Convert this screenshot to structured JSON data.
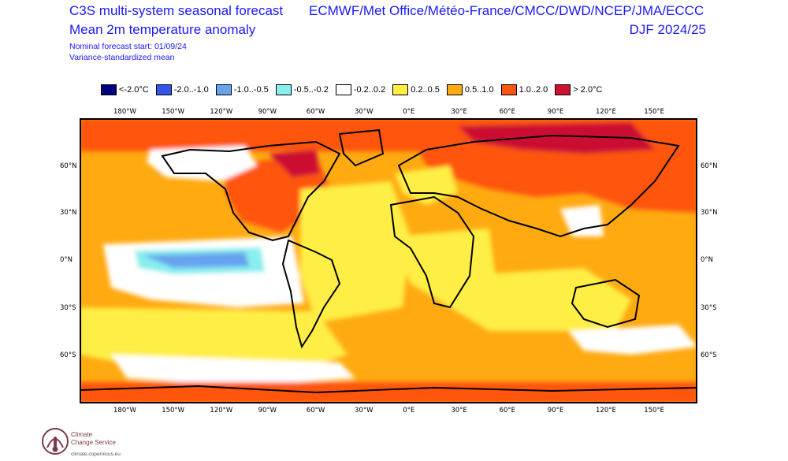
{
  "header": {
    "title_line1": "C3S multi-system seasonal forecast",
    "title_line2": "Mean 2m temperature anomaly",
    "note_line1": "Nominal forecast start: 01/09/24",
    "note_line2": "Variance-standardized mean",
    "models": "ECMWF/Met Office/Météo-France/CMCC/DWD/NCEP/JMA/ECCC",
    "season": "DJF 2024/25"
  },
  "legend": [
    {
      "label": "<-2.0°C",
      "color": "#000080"
    },
    {
      "label": "-2.0..-1.0",
      "color": "#3355ee"
    },
    {
      "label": "-1.0..-0.5",
      "color": "#66a3ee"
    },
    {
      "label": "-0.5..-0.2",
      "color": "#88eeee"
    },
    {
      "label": "-0.2..0.2",
      "color": "#ffffff"
    },
    {
      "label": "0.2..0.5",
      "color": "#ffee44"
    },
    {
      "label": "0.5..1.0",
      "color": "#ffaa11"
    },
    {
      "label": "1.0..2.0",
      "color": "#ff5511"
    },
    {
      "label": "> 2.0°C",
      "color": "#cc1133"
    }
  ],
  "axes": {
    "lon_ticks": [
      "180°W",
      "150°W",
      "120°W",
      "90°W",
      "60°W",
      "30°W",
      "0°E",
      "30°E",
      "60°E",
      "90°E",
      "120°E",
      "150°E"
    ],
    "lat_ticks": [
      "60°N",
      "30°N",
      "0°N",
      "30°S",
      "60°S"
    ]
  },
  "logo": {
    "line1": "Climate",
    "line2": "Change Service",
    "url": "climate.copernicus.eu"
  }
}
